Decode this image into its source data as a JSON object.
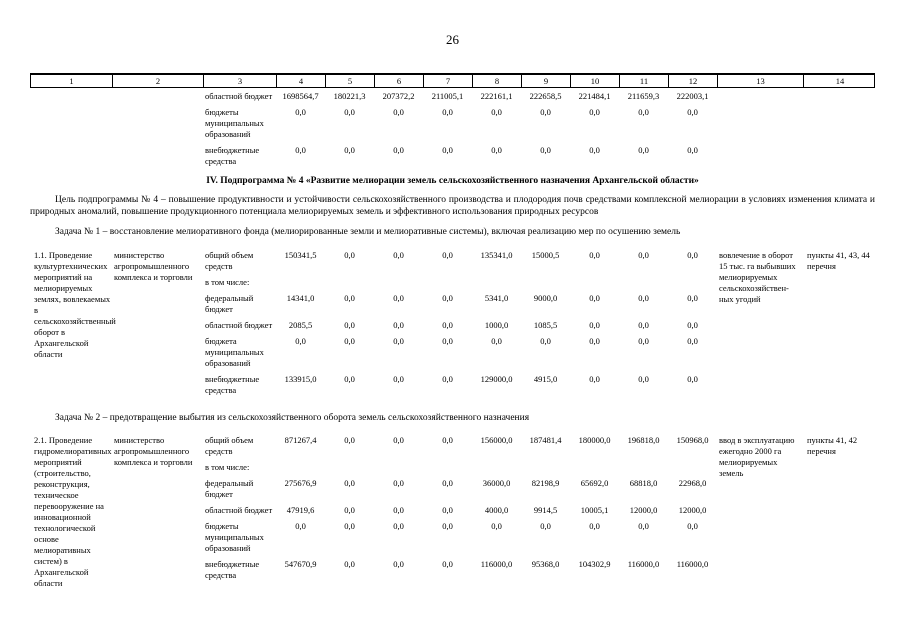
{
  "page_number": "26",
  "table_header": [
    "1",
    "2",
    "3",
    "4",
    "5",
    "6",
    "7",
    "8",
    "9",
    "10",
    "11",
    "12",
    "13",
    "14"
  ],
  "carryover_rows": [
    {
      "label": "областной бюджет",
      "values": [
        "1698564,7",
        "180221,3",
        "207372,2",
        "211005,1",
        "222161,1",
        "222658,5",
        "221484,1",
        "211659,3",
        "222003,1"
      ]
    },
    {
      "label": "бюджеты муниципальных образований",
      "values": [
        "0,0",
        "0,0",
        "0,0",
        "0,0",
        "0,0",
        "0,0",
        "0,0",
        "0,0",
        "0,0"
      ]
    },
    {
      "label": "внебюджетные средства",
      "values": [
        "0,0",
        "0,0",
        "0,0",
        "0,0",
        "0,0",
        "0,0",
        "0,0",
        "0,0",
        "0,0"
      ]
    }
  ],
  "section": {
    "heading": "IV. Подпрограмма № 4 «Развитие мелиорации земель сельскохозяйственного назначения Архангельской области»",
    "goal": "Цель подпрограммы № 4 – повышение продуктивности и устойчивости сельскохозяйственного производства и плодородия почв средствами комплексной мелиорации в условиях изменения климата и природных аномалий, повышение продукционного потенциала мелиорируемых земель и эффективного использования природных ресурсов",
    "task1": "Задача № 1 – восстановление мелиоративного фонда (мелиорированные земли и мелиоративные системы), включая реализацию мер по осушению земель",
    "task2": "Задача № 2 – предотвращение выбытия из сельскохозяйственного оборота земель сельскохозяйственного назначения"
  },
  "entries": [
    {
      "title": "1.1. Проведение культуртехнических мероприятий на мелиорируемых землях, вовлекаемых в сельскохозяйственный оборот в Архангельской области",
      "executor": "министерство агропромышленного комплекса и торговли",
      "rows": [
        {
          "label": "общий объем средств",
          "values": [
            "150341,5",
            "0,0",
            "0,0",
            "0,0",
            "135341,0",
            "15000,5",
            "0,0",
            "0,0",
            "0,0"
          ]
        },
        {
          "label": "в том числе:",
          "values": []
        },
        {
          "label": "федеральный бюджет",
          "values": [
            "14341,0",
            "0,0",
            "0,0",
            "0,0",
            "5341,0",
            "9000,0",
            "0,0",
            "0,0",
            "0,0"
          ]
        },
        {
          "label": "областной бюджет",
          "values": [
            "2085,5",
            "0,0",
            "0,0",
            "0,0",
            "1000,0",
            "1085,5",
            "0,0",
            "0,0",
            "0,0"
          ]
        },
        {
          "label": "бюджета муниципальных образований",
          "values": [
            "0,0",
            "0,0",
            "0,0",
            "0,0",
            "0,0",
            "0,0",
            "0,0",
            "0,0",
            "0,0"
          ]
        },
        {
          "label": "внебюджетные средства",
          "values": [
            "133915,0",
            "0,0",
            "0,0",
            "0,0",
            "129000,0",
            "4915,0",
            "0,0",
            "0,0",
            "0,0"
          ]
        }
      ],
      "result": "вовлечение в оборот 15 тыс. га выбывших мелиорируемых сельскохозяйствен-ных угодий",
      "reference": "пункты 41, 43, 44 перечня"
    },
    {
      "title": "2.1. Проведение гидромелиоративных мероприятий (строительство, реконструкция, техническое перевооружение на инновационной технологической основе мелиоративных систем) в Архангельской области",
      "executor": "министерство агропромышленного комплекса и торговли",
      "rows": [
        {
          "label": "общий объем средств",
          "values": [
            "871267,4",
            "0,0",
            "0,0",
            "0,0",
            "156000,0",
            "187481,4",
            "180000,0",
            "196818,0",
            "150968,0"
          ]
        },
        {
          "label": "в том числе:",
          "values": []
        },
        {
          "label": "федеральный бюджет",
          "values": [
            "275676,9",
            "0,0",
            "0,0",
            "0,0",
            "36000,0",
            "82198,9",
            "65692,0",
            "68818,0",
            "22968,0"
          ]
        },
        {
          "label": "областной бюджет",
          "values": [
            "47919,6",
            "0,0",
            "0,0",
            "0,0",
            "4000,0",
            "9914,5",
            "10005,1",
            "12000,0",
            "12000,0"
          ]
        },
        {
          "label": "бюджеты муниципальных образований",
          "values": [
            "0,0",
            "0,0",
            "0,0",
            "0,0",
            "0,0",
            "0,0",
            "0,0",
            "0,0",
            "0,0"
          ]
        },
        {
          "label": "внебюджетные средства",
          "values": [
            "547670,9",
            "0,0",
            "0,0",
            "0,0",
            "116000,0",
            "95368,0",
            "104302,9",
            "116000,0",
            "116000,0"
          ]
        }
      ],
      "result": "ввод в эксплуатацию ежегодно 2000 га мелиорируемых земель",
      "reference": "пункты 41, 42 перечня"
    }
  ]
}
